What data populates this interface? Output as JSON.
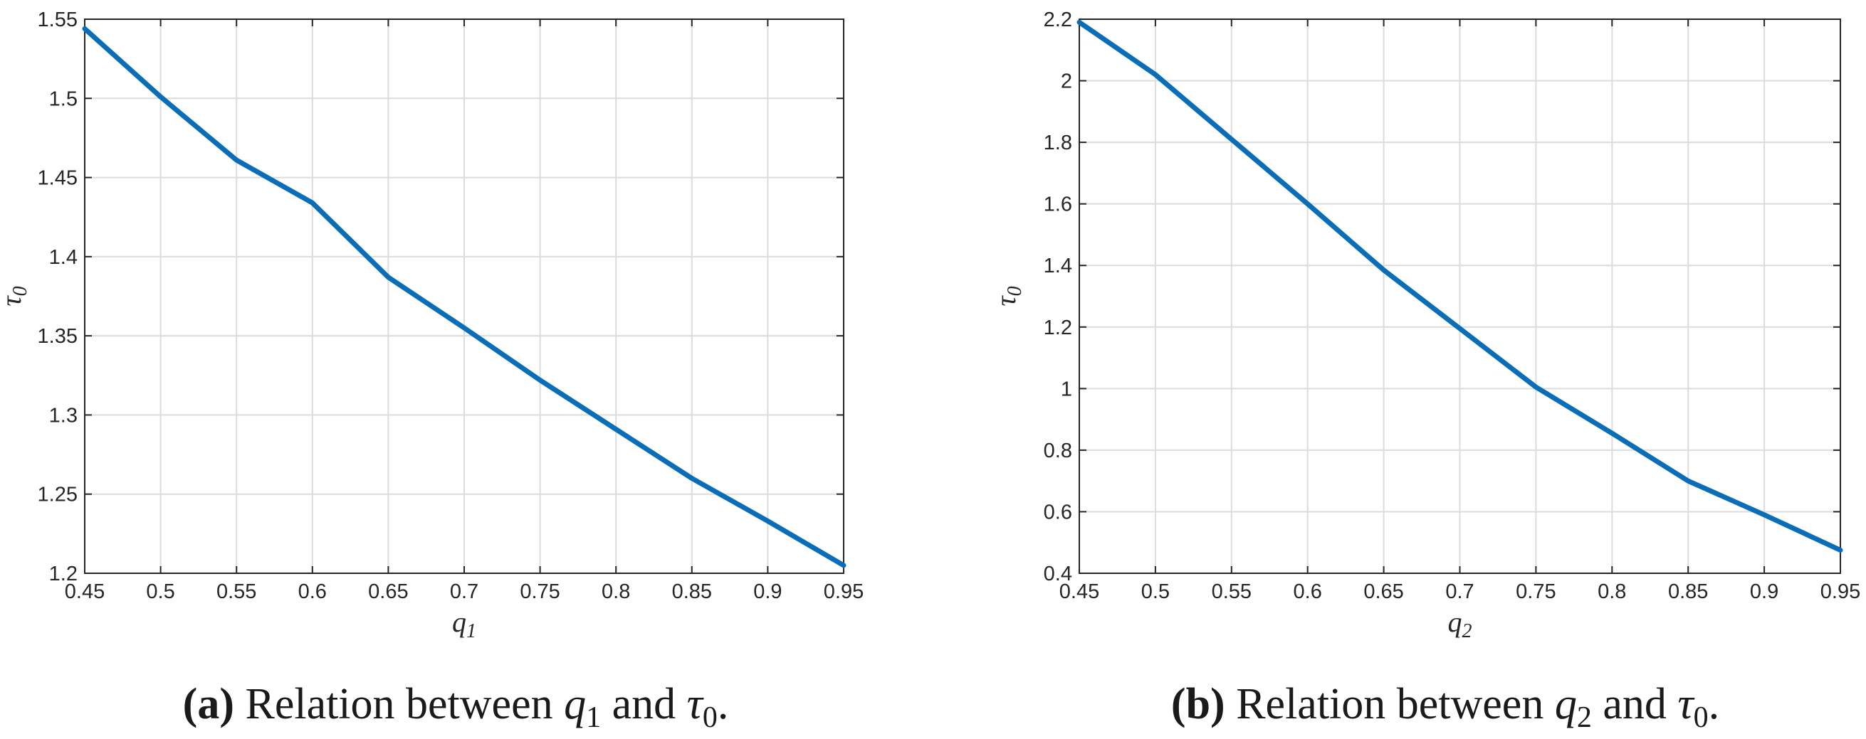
{
  "colors": {
    "series": "#0a6db8",
    "text": "#262626",
    "grid": "#dcdcdc"
  },
  "chart_data": [
    {
      "type": "line",
      "panel": "a",
      "xlabel": "q",
      "xlabel_sub": "1",
      "ylabel": "τ",
      "ylabel_sub": "0",
      "xlim": [
        0.45,
        0.95
      ],
      "ylim": [
        1.2,
        1.55
      ],
      "xticks": [
        "0.45",
        "0.5",
        "0.55",
        "0.6",
        "0.65",
        "0.7",
        "0.75",
        "0.8",
        "0.85",
        "0.9",
        "0.95"
      ],
      "yticks": [
        "1.2",
        "1.25",
        "1.3",
        "1.35",
        "1.4",
        "1.45",
        "1.5",
        "1.55"
      ],
      "grid": true,
      "x": [
        0.45,
        0.5,
        0.55,
        0.6,
        0.65,
        0.7,
        0.75,
        0.8,
        0.85,
        0.9,
        0.95
      ],
      "y": [
        1.544,
        1.501,
        1.461,
        1.434,
        1.387,
        1.355,
        1.322,
        1.291,
        1.26,
        1.233,
        1.205
      ],
      "caption": {
        "label": "(a)",
        "text_before": "Relation between",
        "var": "q",
        "var_sub": "1",
        "middle": "and",
        "var2": "τ",
        "var2_sub": "0",
        "end": "."
      }
    },
    {
      "type": "line",
      "panel": "b",
      "xlabel": "q",
      "xlabel_sub": "2",
      "ylabel": "τ",
      "ylabel_sub": "0",
      "xlim": [
        0.45,
        0.95
      ],
      "ylim": [
        0.4,
        2.2
      ],
      "xticks": [
        "0.45",
        "0.5",
        "0.55",
        "0.6",
        "0.65",
        "0.7",
        "0.75",
        "0.8",
        "0.85",
        "0.9",
        "0.95"
      ],
      "yticks": [
        "0.4",
        "0.6",
        "0.8",
        "1",
        "1.2",
        "1.4",
        "1.6",
        "1.8",
        "2",
        "2.2"
      ],
      "grid": true,
      "x": [
        0.45,
        0.5,
        0.55,
        0.6,
        0.65,
        0.7,
        0.75,
        0.8,
        0.85,
        0.9,
        0.95
      ],
      "y": [
        2.19,
        2.02,
        1.81,
        1.6,
        1.385,
        1.195,
        1.005,
        0.855,
        0.7,
        0.59,
        0.475
      ],
      "caption": {
        "label": "(b)",
        "text_before": "Relation between",
        "var": "q",
        "var_sub": "2",
        "middle": "and",
        "var2": "τ",
        "var2_sub": "0",
        "end": "."
      }
    }
  ]
}
